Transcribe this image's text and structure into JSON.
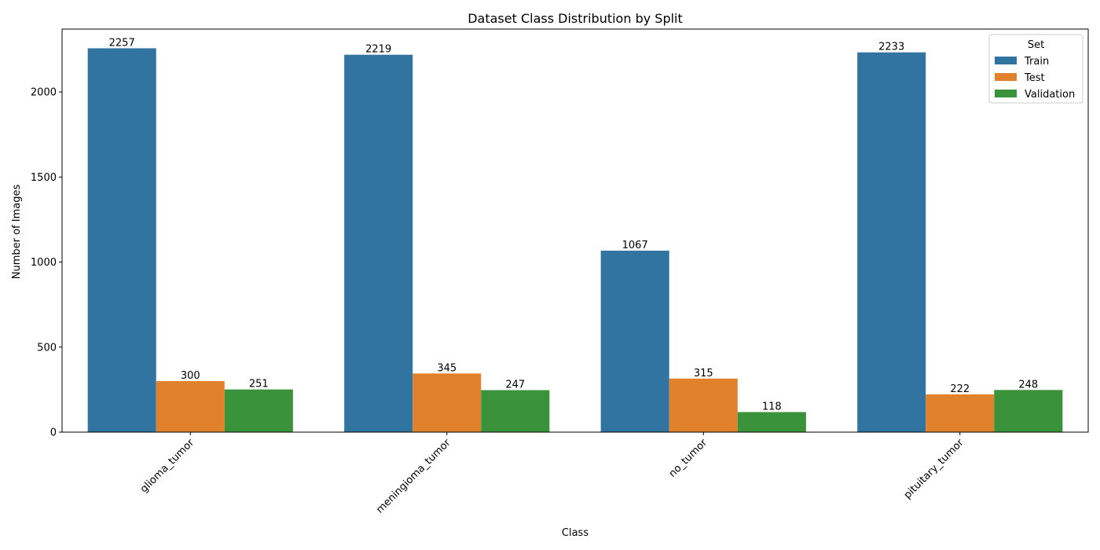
{
  "chart_data": {
    "type": "bar",
    "title": "Dataset Class Distribution by Split",
    "xlabel": "Class",
    "ylabel": "Number of Images",
    "categories": [
      "glioma_tumor",
      "meningioma_tumor",
      "no_tumor",
      "pituitary_tumor"
    ],
    "series": [
      {
        "name": "Train",
        "color": "#3274a1",
        "values": [
          2257,
          2219,
          1067,
          2233
        ]
      },
      {
        "name": "Test",
        "color": "#e1812c",
        "values": [
          300,
          345,
          315,
          222
        ]
      },
      {
        "name": "Validation",
        "color": "#3a923a",
        "values": [
          251,
          247,
          118,
          248
        ]
      }
    ],
    "ylim": [
      0,
      2370
    ],
    "yticks": [
      0,
      500,
      1000,
      1500,
      2000
    ],
    "grid": false,
    "legend": {
      "title": "Set",
      "placement": "top-right"
    },
    "x_tick_rotation_deg": 45
  }
}
